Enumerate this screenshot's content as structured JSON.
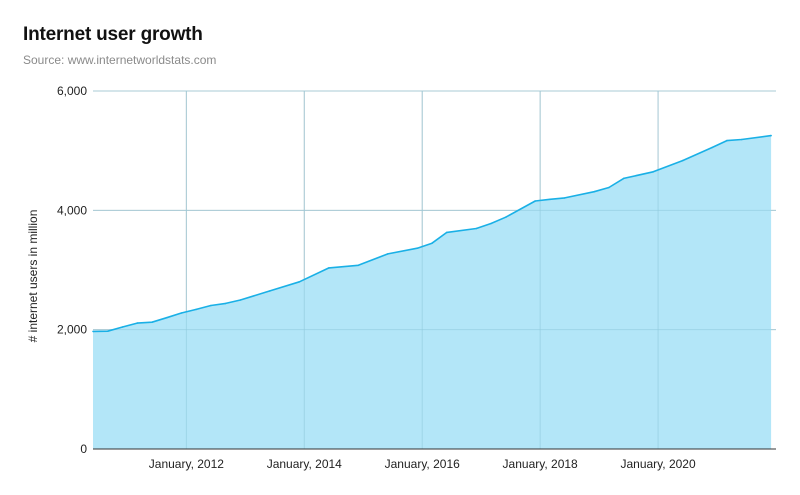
{
  "header": {
    "title": "Internet user growth",
    "subtitle": "Source: www.internetworldstats.com"
  },
  "chart_data": {
    "type": "area",
    "title": "Internet user growth",
    "subtitle": "Source: www.internetworldstats.com",
    "xlabel": "",
    "ylabel": "# internet users in million",
    "xlim": [
      "2010-06",
      "2022-01"
    ],
    "ylim": [
      0,
      6000
    ],
    "yticks": [
      0,
      2000,
      4000,
      6000
    ],
    "ytick_labels": [
      "0",
      "2,000",
      "4,000",
      "6,000"
    ],
    "xticks": [
      "2012-01",
      "2014-01",
      "2016-01",
      "2018-01",
      "2020-01"
    ],
    "xtick_labels": [
      "January, 2012",
      "January, 2014",
      "January, 2016",
      "January, 2018",
      "January, 2020"
    ],
    "grid": true,
    "legend": "none",
    "colors": {
      "line": "#1ab0e6",
      "fill": "#b3e6f8",
      "grid": "#cccccc",
      "axis": "#333333"
    },
    "series": [
      {
        "x": [
          "2010-06",
          "2010-09",
          "2010-12",
          "2011-03",
          "2011-06",
          "2011-09",
          "2011-12",
          "2012-03",
          "2012-06",
          "2012-09",
          "2012-12",
          "2013-06",
          "2013-12",
          "2014-06",
          "2014-12",
          "2015-06",
          "2015-12",
          "2016-03",
          "2016-06",
          "2016-12",
          "2017-03",
          "2017-06",
          "2017-12",
          "2018-03",
          "2018-06",
          "2018-12",
          "2019-03",
          "2019-06",
          "2019-12",
          "2020-06",
          "2020-12",
          "2021-03",
          "2021-06",
          "2021-12"
        ],
        "y": [
          1971,
          1975,
          2045,
          2110,
          2125,
          2200,
          2280,
          2340,
          2405,
          2440,
          2497,
          2650,
          2802,
          3035,
          3079,
          3270,
          3366,
          3450,
          3631,
          3696,
          3780,
          3885,
          4157,
          4185,
          4208,
          4313,
          4383,
          4536,
          4646,
          4833,
          5053,
          5168,
          5187,
          5252
        ]
      }
    ]
  }
}
